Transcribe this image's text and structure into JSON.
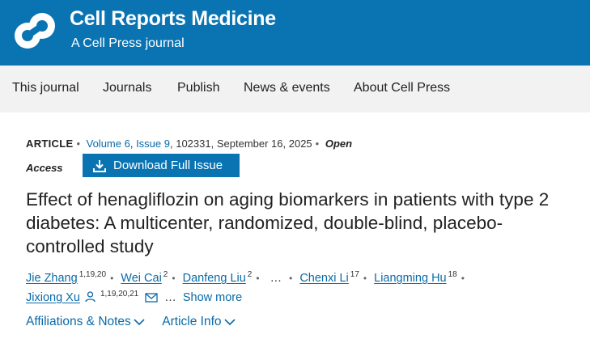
{
  "brand": {
    "title": "Cell Reports Medicine",
    "subtitle": "A Cell Press journal"
  },
  "nav": {
    "items": [
      "This journal",
      "Journals",
      "Publish",
      "News & events",
      "About Cell Press"
    ]
  },
  "article": {
    "type": "ARTICLE",
    "volume": "Volume 6",
    "issue": "Issue 9",
    "number": "102331",
    "date": "September 16, 2025",
    "open": "Open",
    "access": "Access",
    "download_label": "Download Full Issue",
    "title": "Effect of henagliflozin on aging biomarkers in patients with type 2 diabetes: A multicenter, randomized, double-blind, placebo-controlled study"
  },
  "authors": [
    {
      "name": "Jie Zhang",
      "aff": "1,19,20"
    },
    {
      "name": "Wei Cai",
      "aff": "2"
    },
    {
      "name": "Danfeng Liu",
      "aff": "2"
    },
    {
      "name": "Chenxi Li",
      "aff": "17"
    },
    {
      "name": "Liangming Hu",
      "aff": "18"
    },
    {
      "name": "Jixiong Xu",
      "aff": "1,19,20,21"
    }
  ],
  "authors_ellipsis": "…",
  "show_more": "Show more",
  "sections": {
    "affiliations": "Affiliations & Notes",
    "article_info": "Article Info"
  },
  "colors": {
    "brand": "#0a74b3",
    "link": "#0a6aa8"
  },
  "icons": {
    "logo": "cell-press-logo",
    "download": "download-icon",
    "person": "person-icon",
    "email": "email-icon",
    "chevron": "chevron-down-icon"
  }
}
